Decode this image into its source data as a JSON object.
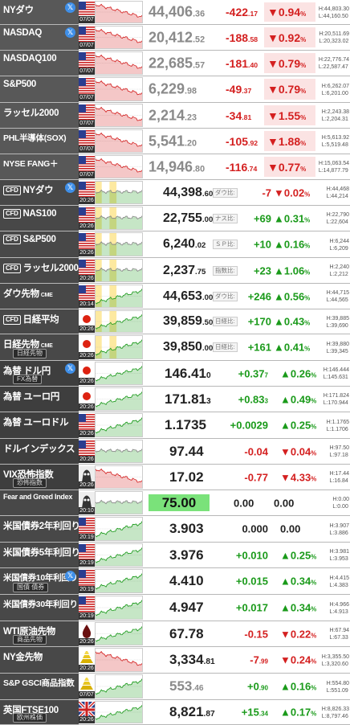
{
  "rows": [
    {
      "name": "NYダウ",
      "sub": "",
      "cfd": false,
      "tw": true,
      "flag": "us",
      "time": "07/07",
      "group": "idx",
      "price": "44,406",
      "pdec": ".36",
      "chg": "-422",
      "cdec": ".17",
      "dir": "down",
      "pct": "▼0.94",
      "hi": "H:44,803.30",
      "lo": "L:44,160.50",
      "tag": "",
      "trend": "down"
    },
    {
      "name": "NASDAQ",
      "sub": "",
      "cfd": false,
      "tw": true,
      "flag": "us",
      "time": "07/07",
      "group": "idx",
      "price": "20,412",
      "pdec": ".52",
      "chg": "-188",
      "cdec": ".58",
      "dir": "down",
      "pct": "▼0.92",
      "hi": "H:20,511.69",
      "lo": "L:20,323.02",
      "tag": "",
      "trend": "down"
    },
    {
      "name": "NASDAQ100",
      "sub": "",
      "cfd": false,
      "tw": false,
      "flag": "us",
      "time": "07/07",
      "group": "idx",
      "price": "22,685",
      "pdec": ".57",
      "chg": "-181",
      "cdec": ".40",
      "dir": "down",
      "pct": "▼0.79",
      "hi": "H:22,776.74",
      "lo": "L:22,587.47",
      "tag": "",
      "trend": "down"
    },
    {
      "name": "S&P500",
      "sub": "",
      "cfd": false,
      "tw": false,
      "flag": "us",
      "time": "07/07",
      "group": "idx",
      "price": "6,229",
      "pdec": ".98",
      "chg": "-49",
      "cdec": ".37",
      "dir": "down",
      "pct": "▼0.79",
      "hi": "H:6,262.07",
      "lo": "L:6,201.00",
      "tag": "",
      "trend": "down"
    },
    {
      "name": "ラッセル2000",
      "sub": "",
      "cfd": false,
      "tw": false,
      "flag": "us",
      "time": "07/07",
      "group": "idx",
      "price": "2,214",
      "pdec": ".23",
      "chg": "-34",
      "cdec": ".81",
      "dir": "down",
      "pct": "▼1.55",
      "hi": "H:2,243.38",
      "lo": "L:2,204.31",
      "tag": "",
      "trend": "down"
    },
    {
      "name": "PHL半導体(SOX)",
      "sub": "",
      "cfd": false,
      "tw": false,
      "flag": "us",
      "time": "07/07",
      "group": "idx",
      "price": "5,541",
      "pdec": ".20",
      "chg": "-105",
      "cdec": ".92",
      "dir": "down",
      "pct": "▼1.88",
      "hi": "H:5,613.92",
      "lo": "L:5,519.48",
      "tag": "",
      "trend": "down"
    },
    {
      "name": "NYSE FANG＋",
      "sub": "",
      "cfd": false,
      "tw": false,
      "flag": "us",
      "time": "07/07",
      "group": "idx",
      "price": "14,946",
      "pdec": ".80",
      "chg": "-116",
      "cdec": ".74",
      "dir": "down",
      "pct": "▼0.77",
      "hi": "H:15,063.54",
      "lo": "L:14,877.79",
      "tag": "",
      "trend": "down"
    },
    {
      "name": "NYダウ",
      "sub": "",
      "cfd": true,
      "tw": true,
      "flag": "us",
      "time": "20:26",
      "group": "cfd",
      "price": "44,398",
      "pdec": ".60",
      "chg": "-7",
      "cdec": "",
      "dir": "down",
      "pct": "▼0.02",
      "hi": "H:44,468",
      "lo": "L:44,214",
      "tag": "ダウ比:",
      "trend": "flat"
    },
    {
      "name": "NAS100",
      "sub": "",
      "cfd": true,
      "tw": false,
      "flag": "us",
      "time": "20:26",
      "group": "cfd",
      "price": "22,755",
      "pdec": ".00",
      "chg": "+69",
      "cdec": "",
      "dir": "up",
      "pct": "▲0.31",
      "hi": "H:22,790",
      "lo": "L:22,604",
      "tag": "ナス比:",
      "trend": "flat"
    },
    {
      "name": "S&P500",
      "sub": "",
      "cfd": true,
      "tw": false,
      "flag": "us",
      "time": "20:26",
      "group": "cfd",
      "price": "6,240",
      "pdec": ".02",
      "chg": "+10",
      "cdec": "",
      "dir": "up",
      "pct": "▲0.16",
      "hi": "H:6,244",
      "lo": "L:6,209",
      "tag": "ＳＰ比:",
      "trend": "flat"
    },
    {
      "name": "ラッセル2000",
      "sub": "",
      "cfd": true,
      "tw": false,
      "flag": "us",
      "time": "20:26",
      "group": "cfd",
      "price": "2,237",
      "pdec": ".75",
      "chg": "+23",
      "cdec": "",
      "dir": "up",
      "pct": "▲1.06",
      "hi": "H:2,240",
      "lo": "L:2,212",
      "tag": "指数比:",
      "trend": "flat"
    },
    {
      "name": "ダウ先物",
      "sub": "",
      "cfd": false,
      "tw": false,
      "flag": "us",
      "time": "20:14",
      "group": "cfd",
      "price": "44,653",
      "pdec": ".00",
      "chg": "+246",
      "cdec": "",
      "dir": "up",
      "pct": "▲0.56",
      "hi": "H:44,715",
      "lo": "L:44,565",
      "tag": "ダウ比:",
      "trend": "up",
      "cme": true
    },
    {
      "name": "日経平均",
      "sub": "",
      "cfd": true,
      "tw": false,
      "flag": "jp",
      "time": "20:26",
      "group": "cfd",
      "price": "39,859",
      "pdec": ".50",
      "chg": "+170",
      "cdec": "",
      "dir": "up",
      "pct": "▲0.43",
      "hi": "H:39,885",
      "lo": "L:39,690",
      "tag": "日経比:",
      "trend": "up"
    },
    {
      "name": "日経先物",
      "sub": "日経先物",
      "cfd": false,
      "tw": false,
      "flag": "jp",
      "time": "20:26",
      "group": "cfd",
      "price": "39,850",
      "pdec": ".00",
      "chg": "+161",
      "cdec": "",
      "dir": "up",
      "pct": "▲0.41",
      "hi": "H:39,880",
      "lo": "L:39,345",
      "tag": "日経比:",
      "trend": "up",
      "cme": true
    },
    {
      "name": "為替 ドル円",
      "sub": "FX為替",
      "cfd": false,
      "tw": true,
      "flag": "jp",
      "time": "20:26",
      "group": "fx",
      "price": "146.41",
      "pdec": "0",
      "chg": "+0.37",
      "cdec": "7",
      "dir": "up",
      "pct": "▲0.26",
      "hi": "H:146.444",
      "lo": "L:145.631",
      "tag": "",
      "trend": "up"
    },
    {
      "name": "為替 ユーロ円",
      "sub": "",
      "cfd": false,
      "tw": false,
      "flag": "jp",
      "time": "20:26",
      "group": "fx",
      "price": "171.81",
      "pdec": "3",
      "chg": "+0.83",
      "cdec": "3",
      "dir": "up",
      "pct": "▲0.49",
      "hi": "H:171.824",
      "lo": "L:170.944",
      "tag": "",
      "trend": "up"
    },
    {
      "name": "為替 ユーロドル",
      "sub": "",
      "cfd": false,
      "tw": false,
      "flag": "us",
      "time": "20:26",
      "group": "fx",
      "price": "1.1735",
      "pdec": "",
      "chg": "+0.0029",
      "cdec": "",
      "dir": "up",
      "pct": "▲0.25",
      "hi": "H:1.1765",
      "lo": "L:1.1706",
      "tag": "",
      "trend": "up"
    },
    {
      "name": "ドルインデックス",
      "sub": "",
      "cfd": false,
      "tw": false,
      "flag": "us",
      "time": "20:26",
      "group": "fx",
      "price": "97.44",
      "pdec": "",
      "chg": "-0.04",
      "cdec": "",
      "dir": "down",
      "pct": "▼0.04",
      "hi": "H:97.50",
      "lo": "L:97.18",
      "tag": "",
      "trend": "flat"
    },
    {
      "name": "VIX恐怖指数",
      "sub": "恐怖指数",
      "cfd": false,
      "tw": false,
      "flag": "fear",
      "time": "20:26",
      "group": "fx",
      "price": "17.02",
      "pdec": "",
      "chg": "-0.77",
      "cdec": "",
      "dir": "down",
      "pct": "▼4.33",
      "hi": "H:17.44",
      "lo": "L:16.84",
      "tag": "",
      "trend": "down"
    },
    {
      "name": "Fear and Greed Index",
      "sub": "",
      "cfd": false,
      "tw": false,
      "flag": "fear",
      "time": "20:10",
      "group": "fg",
      "price": "75.00",
      "pdec": "",
      "chg": "0.00",
      "cdec": "",
      "dir": "flat",
      "pct": "0.00",
      "hi": "H:0.00",
      "lo": "L:0.00",
      "tag": "",
      "trend": "flat"
    },
    {
      "name": "米国債券2年利回り",
      "sub": "",
      "cfd": false,
      "tw": false,
      "flag": "us",
      "time": "20:19",
      "group": "bond",
      "price": "3.903",
      "pdec": "",
      "chg": "0.000",
      "cdec": "",
      "dir": "flat",
      "pct": "0.00",
      "hi": "H:3.907",
      "lo": "L:3.886",
      "tag": "",
      "trend": "up"
    },
    {
      "name": "米国債券5年利回り",
      "sub": "",
      "cfd": false,
      "tw": false,
      "flag": "us",
      "time": "20:19",
      "group": "bond",
      "price": "3.976",
      "pdec": "",
      "chg": "+0.010",
      "cdec": "",
      "dir": "up",
      "pct": "▲0.25",
      "hi": "H:3.981",
      "lo": "L:3.953",
      "tag": "",
      "trend": "up"
    },
    {
      "name": "米国債券10年利回り",
      "sub": "国債 債券",
      "cfd": false,
      "tw": true,
      "flag": "us",
      "time": "20:19",
      "group": "bond",
      "price": "4.410",
      "pdec": "",
      "chg": "+0.015",
      "cdec": "",
      "dir": "up",
      "pct": "▲0.34",
      "hi": "H:4.415",
      "lo": "L:4.383",
      "tag": "",
      "trend": "up"
    },
    {
      "name": "米国債券30年利回り",
      "sub": "",
      "cfd": false,
      "tw": false,
      "flag": "us",
      "time": "20:19",
      "group": "bond",
      "price": "4.947",
      "pdec": "",
      "chg": "+0.017",
      "cdec": "",
      "dir": "up",
      "pct": "▲0.34",
      "hi": "H:4.966",
      "lo": "L:4.913",
      "tag": "",
      "trend": "up"
    },
    {
      "name": "WTI原油先物",
      "sub": "商品先物",
      "cfd": false,
      "tw": false,
      "flag": "oil",
      "time": "20:26",
      "group": "com",
      "price": "67.78",
      "pdec": "",
      "chg": "-0.15",
      "cdec": "",
      "dir": "down",
      "pct": "▼0.22",
      "hi": "H:67.94",
      "lo": "L:67.33",
      "tag": "",
      "trend": "up"
    },
    {
      "name": "NY金先物",
      "sub": "",
      "cfd": false,
      "tw": false,
      "flag": "gold",
      "time": "20:26",
      "group": "com",
      "price": "3,334",
      "pdec": ".81",
      "chg": "-7",
      "cdec": ".99",
      "dir": "down",
      "pct": "▼0.24",
      "hi": "H:3,355.50",
      "lo": "L:3,320.60",
      "tag": "",
      "trend": "down"
    },
    {
      "name": "S&P GSCI商品指数",
      "sub": "",
      "cfd": false,
      "tw": false,
      "flag": "gold",
      "time": "07/07",
      "group": "com",
      "price": "553",
      "pdec": ".46",
      "chg": "+0",
      "cdec": ".90",
      "dir": "up",
      "pct": "▲0.16",
      "hi": "H:554.80",
      "lo": "L:551.09",
      "tag": "",
      "trend": "up",
      "muted": true
    },
    {
      "name": "英国FTSE100",
      "sub": "欧州株価",
      "cfd": false,
      "tw": false,
      "flag": "uk",
      "time": "20:26",
      "group": "eu",
      "price": "8,821",
      "pdec": ".87",
      "chg": "+15",
      "cdec": ".34",
      "dir": "up",
      "pct": "▲0.17",
      "hi": "H:8,826.33",
      "lo": "L:8,797.46",
      "tag": "",
      "trend": "up"
    }
  ],
  "colors": {
    "down": "#d42020",
    "up": "#1a9a1a",
    "highlight": "#7ae27a"
  }
}
